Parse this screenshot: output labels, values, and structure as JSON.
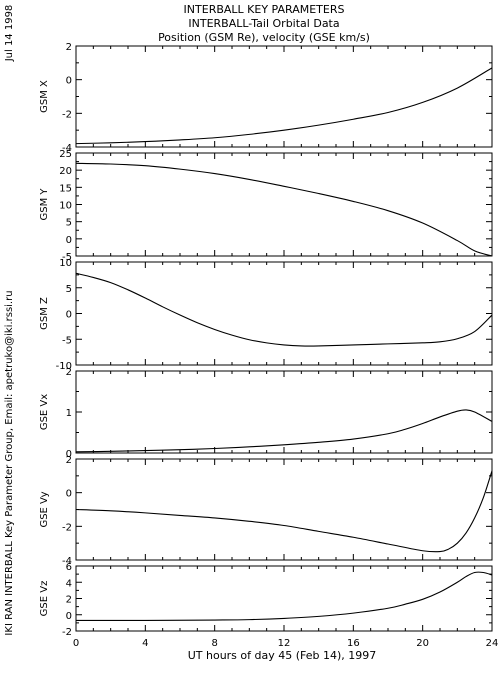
{
  "header": {
    "line1": "INTERBALL KEY PARAMETERS",
    "line2": "INTERBALL-Tail Orbital Data",
    "line3": "Position (GSM Re), velocity (GSE km/s)"
  },
  "side_date": "Jul 14 1998",
  "side_credit": "IKI RAN INTERBALL Key Parameter Group, Email: apetruko@iki.rssi.ru",
  "chart_data": {
    "type": "line",
    "xlabel": "UT hours of day  45 (Feb 14), 1997",
    "xlim": [
      0,
      24
    ],
    "xticks": [
      0,
      4,
      8,
      12,
      16,
      20,
      24
    ],
    "panels": [
      {
        "ylabel": "GSM X",
        "ylim": [
          -4,
          2
        ],
        "yticks": [
          -4,
          -2,
          0,
          2
        ],
        "x": [
          0,
          2,
          4,
          6,
          8,
          10,
          12,
          14,
          16,
          18,
          20,
          22,
          24
        ],
        "y": [
          -3.8,
          -3.75,
          -3.68,
          -3.58,
          -3.45,
          -3.25,
          -3.0,
          -2.7,
          -2.35,
          -1.95,
          -1.35,
          -0.5,
          0.7
        ]
      },
      {
        "ylabel": "GSM Y",
        "ylim": [
          -5,
          25
        ],
        "yticks": [
          -5,
          0,
          5,
          10,
          15,
          20,
          25
        ],
        "x": [
          0,
          2,
          4,
          6,
          8,
          10,
          12,
          14,
          16,
          18,
          20,
          22,
          23,
          24
        ],
        "y": [
          22,
          21.8,
          21.3,
          20.3,
          19,
          17.3,
          15.3,
          13.2,
          10.9,
          8.2,
          4.6,
          -0.5,
          -3.5,
          -5
        ]
      },
      {
        "ylabel": "GSM Z",
        "ylim": [
          -10,
          10
        ],
        "yticks": [
          -10,
          -5,
          0,
          5,
          10
        ],
        "x": [
          0,
          1,
          2,
          3,
          4,
          5,
          6,
          7,
          8,
          9,
          10,
          11,
          12,
          13,
          14,
          16,
          18,
          20,
          21,
          22,
          23,
          24
        ],
        "y": [
          7.8,
          7.0,
          6.0,
          4.6,
          3.0,
          1.3,
          -0.3,
          -1.8,
          -3.1,
          -4.2,
          -5.1,
          -5.7,
          -6.1,
          -6.3,
          -6.3,
          -6.1,
          -5.9,
          -5.7,
          -5.5,
          -4.9,
          -3.5,
          -0.3
        ]
      },
      {
        "ylabel": "GSE Vx",
        "ylim": [
          0,
          2
        ],
        "yticks": [
          0,
          1,
          2
        ],
        "x": [
          0,
          2,
          4,
          6,
          8,
          10,
          12,
          14,
          16,
          18,
          19,
          20,
          21,
          22,
          22.5,
          23,
          24
        ],
        "y": [
          0.03,
          0.04,
          0.06,
          0.08,
          0.11,
          0.15,
          0.2,
          0.26,
          0.34,
          0.47,
          0.58,
          0.72,
          0.88,
          1.02,
          1.05,
          1.0,
          0.77
        ]
      },
      {
        "ylabel": "GSE Vy",
        "ylim": [
          -4,
          2
        ],
        "yticks": [
          -4,
          -2,
          0,
          2
        ],
        "x": [
          0,
          2,
          4,
          6,
          8,
          10,
          12,
          14,
          16,
          18,
          20,
          21,
          21.5,
          22,
          22.5,
          23,
          23.5,
          24
        ],
        "y": [
          -1.0,
          -1.08,
          -1.2,
          -1.35,
          -1.5,
          -1.7,
          -1.95,
          -2.3,
          -2.65,
          -3.05,
          -3.45,
          -3.5,
          -3.35,
          -3.0,
          -2.4,
          -1.5,
          -0.3,
          1.3
        ]
      },
      {
        "ylabel": "GSE Vz",
        "ylim": [
          -2,
          6
        ],
        "yticks": [
          -2,
          0,
          2,
          4,
          6
        ],
        "x": [
          0,
          4,
          8,
          10,
          12,
          14,
          16,
          18,
          19,
          20,
          21,
          22,
          22.5,
          23,
          23.5,
          24
        ],
        "y": [
          -0.7,
          -0.7,
          -0.65,
          -0.6,
          -0.45,
          -0.2,
          0.2,
          0.8,
          1.3,
          1.9,
          2.8,
          4.0,
          4.7,
          5.2,
          5.2,
          4.9
        ]
      }
    ]
  }
}
